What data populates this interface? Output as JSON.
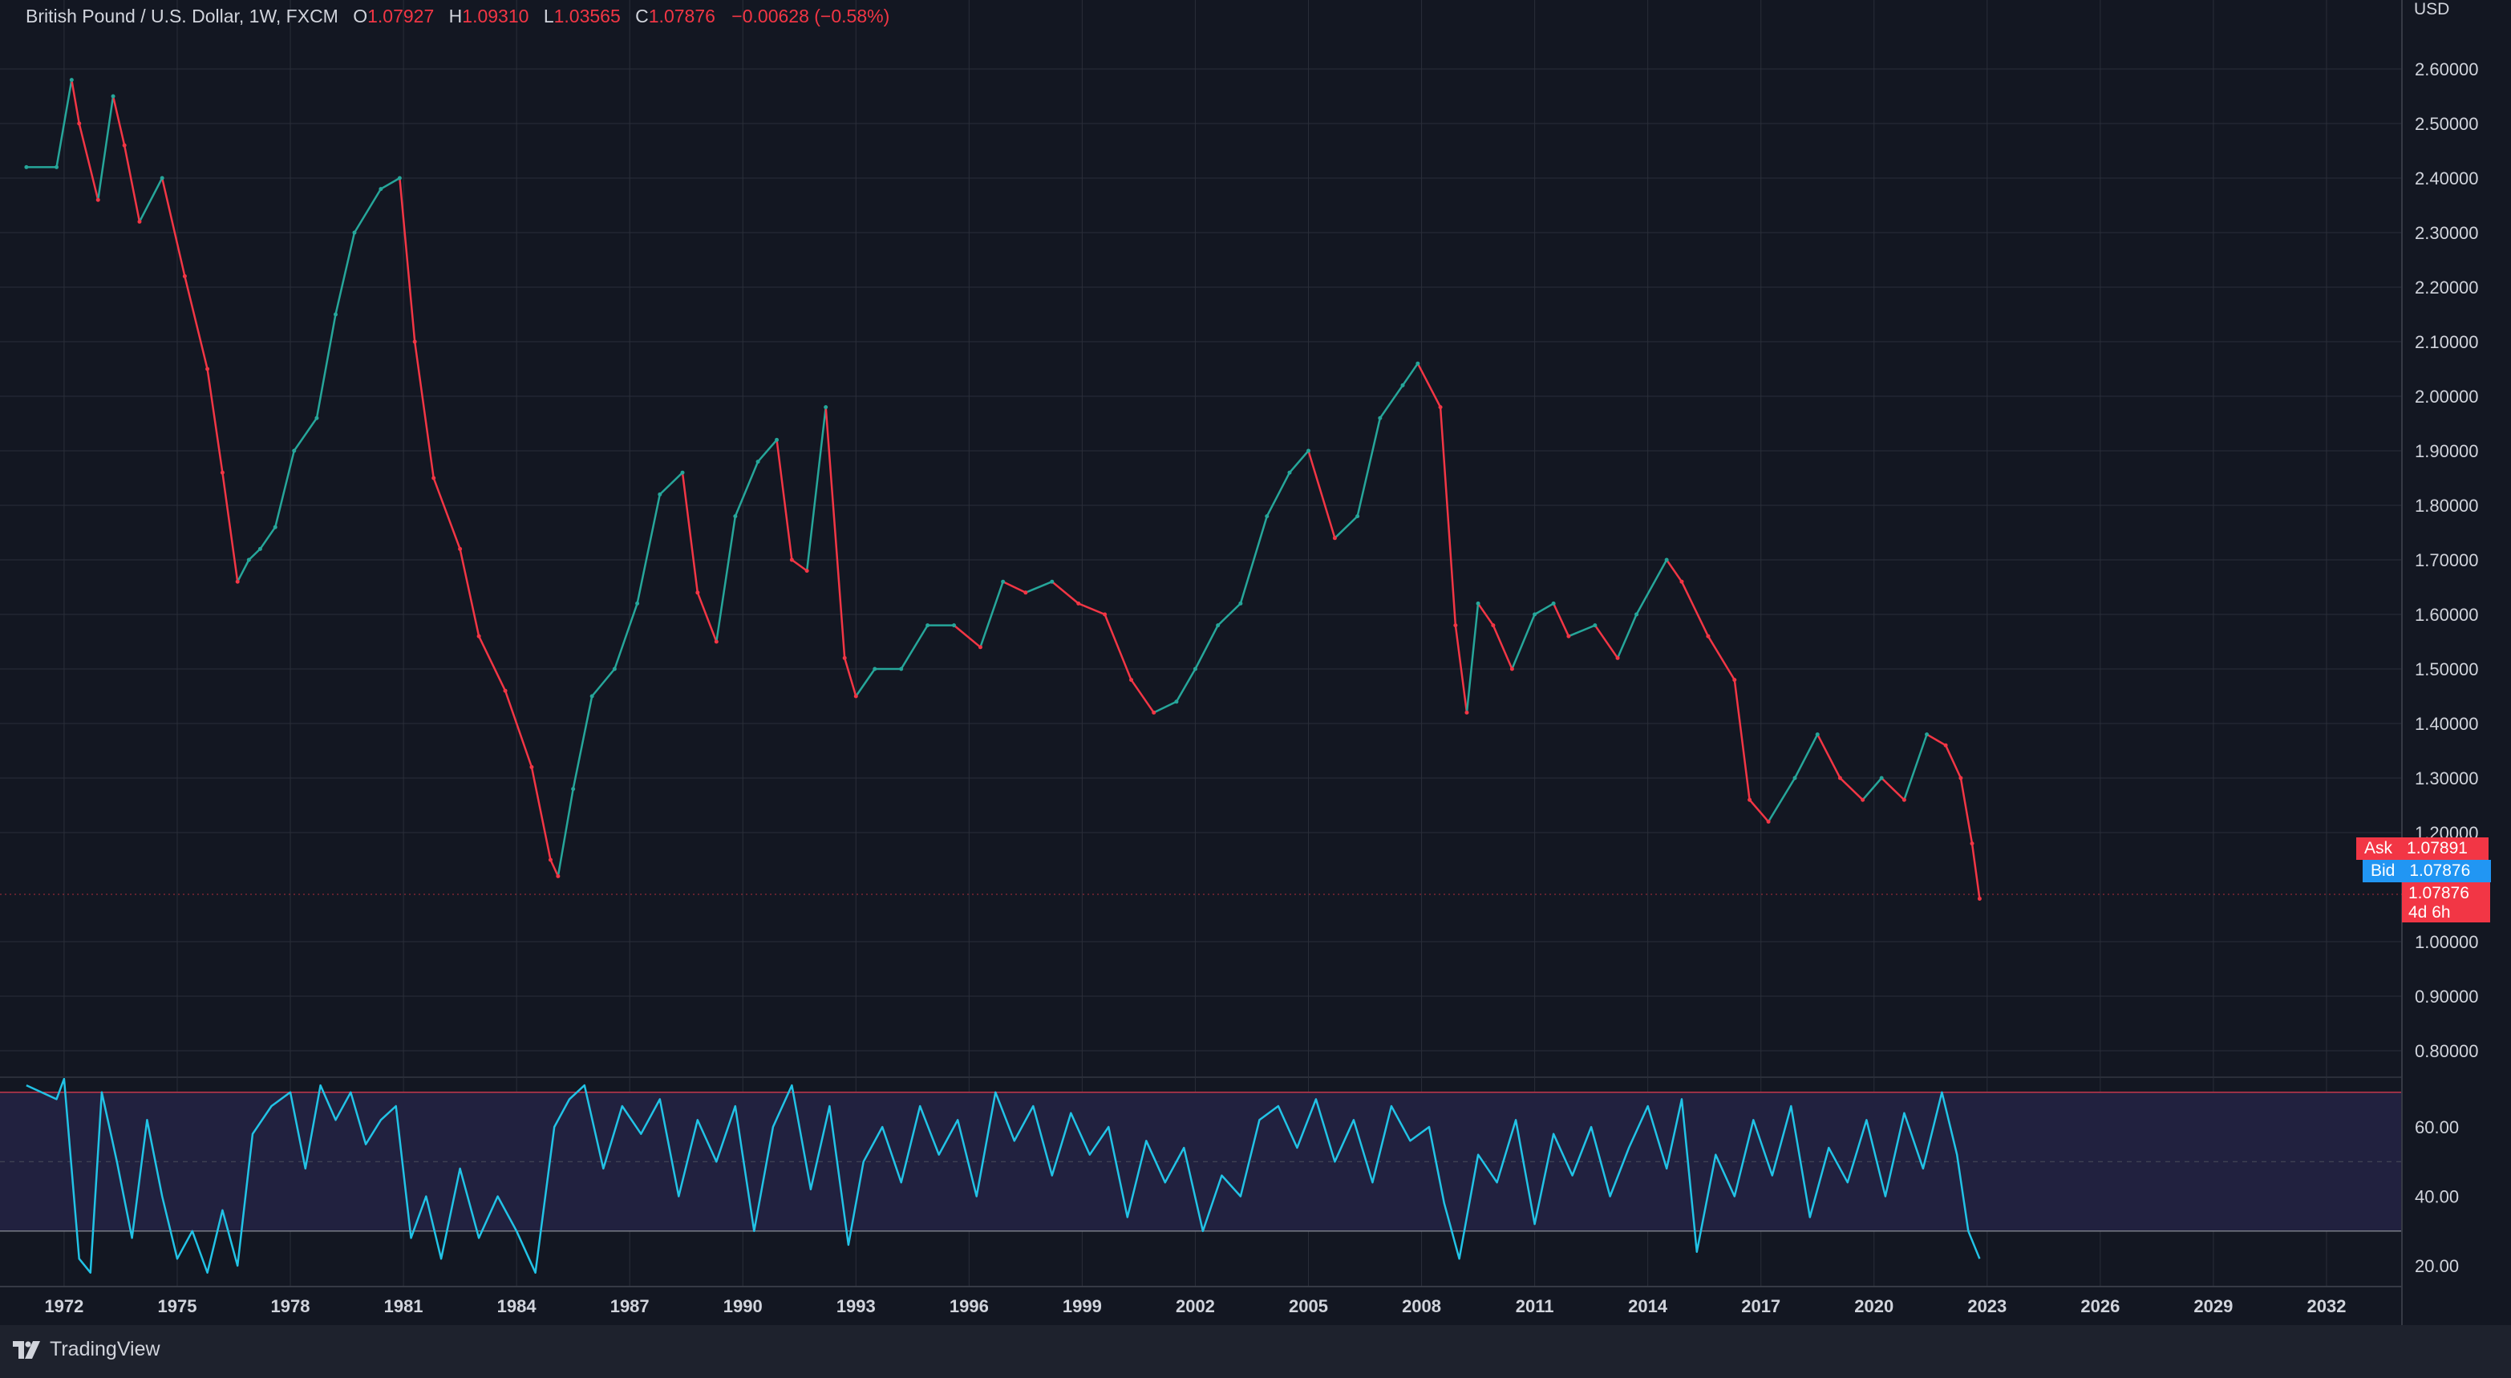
{
  "legend": {
    "symbol": "British Pound / U.S. Dollar, 1W, FXCM",
    "open_label": "O",
    "open": "1.07927",
    "high_label": "H",
    "high": "1.09310",
    "low_label": "L",
    "low": "1.03565",
    "close_label": "C",
    "close": "1.07876",
    "change": "−0.00628 (−0.58%)"
  },
  "currency": "USD",
  "ask": {
    "label": "Ask",
    "value": "1.07891"
  },
  "bid": {
    "label": "Bid",
    "value": "1.07876"
  },
  "last_price": {
    "value": "1.07876",
    "countdown": "4d 6h"
  },
  "brand": "TradingView",
  "colors": {
    "background": "#131722",
    "grid": "#2a2e39",
    "up": "#26a69a",
    "down": "#f23645",
    "rsi_line": "#22c3e6",
    "rsi_band": "#21213f",
    "rsi_bound": "#c2364a",
    "panel": "#1e222d"
  },
  "chart_data": [
    {
      "type": "line",
      "title": "British Pound / U.S. Dollar, 1W, FXCM",
      "xlabel": "",
      "ylabel": "",
      "x_ticks": [
        "1972",
        "1975",
        "1978",
        "1981",
        "1984",
        "1987",
        "1990",
        "1993",
        "1996",
        "1999",
        "2002",
        "2005",
        "2008",
        "2011",
        "2014",
        "2017",
        "2020",
        "2023",
        "2026",
        "2029",
        "2032"
      ],
      "x_range": [
        1970.3,
        2034.0
      ],
      "ylim": [
        0.75,
        2.7
      ],
      "y_ticks": [
        "2.60000",
        "2.50000",
        "2.40000",
        "2.30000",
        "2.20000",
        "2.10000",
        "2.00000",
        "1.90000",
        "1.80000",
        "1.70000",
        "1.60000",
        "1.50000",
        "1.40000",
        "1.30000",
        "1.20000",
        "1.00000",
        "0.90000",
        "0.80000"
      ],
      "grid": true,
      "series": [
        {
          "x": [
            1971.0,
            1971.8,
            1972.2,
            1972.4,
            1972.9,
            1973.3,
            1973.6,
            1974.0,
            1974.6,
            1975.2,
            1975.8,
            1976.2,
            1976.6,
            1976.9,
            1977.2,
            1977.6,
            1978.1,
            1978.7,
            1979.2,
            1979.7,
            1980.4,
            1980.9,
            1981.3,
            1981.8,
            1982.5,
            1983.0,
            1983.7,
            1984.4,
            1984.9,
            1985.1,
            1985.5,
            1986.0,
            1986.6,
            1987.2,
            1987.8,
            1988.4,
            1988.8,
            1989.3,
            1989.8,
            1990.4,
            1990.9,
            1991.3,
            1991.7,
            1992.2,
            1992.7,
            1993.0,
            1993.5,
            1994.2,
            1994.9,
            1995.6,
            1996.3,
            1996.9,
            1997.5,
            1998.2,
            1998.9,
            1999.6,
            2000.3,
            2000.9,
            2001.5,
            2002.0,
            2002.6,
            2003.2,
            2003.9,
            2004.5,
            2005.0,
            2005.7,
            2006.3,
            2006.9,
            2007.5,
            2007.9,
            2008.5,
            2008.9,
            2009.2,
            2009.5,
            2009.9,
            2010.4,
            2011.0,
            2011.5,
            2011.9,
            2012.6,
            2013.2,
            2013.7,
            2014.5,
            2014.9,
            2015.6,
            2016.3,
            2016.7,
            2017.2,
            2017.9,
            2018.5,
            2019.1,
            2019.7,
            2020.2,
            2020.8,
            2021.4,
            2021.9,
            2022.3,
            2022.6,
            2022.8
          ],
          "y": [
            2.42,
            2.42,
            2.58,
            2.5,
            2.36,
            2.55,
            2.46,
            2.32,
            2.4,
            2.22,
            2.05,
            1.86,
            1.66,
            1.7,
            1.72,
            1.76,
            1.9,
            1.96,
            2.15,
            2.3,
            2.38,
            2.4,
            2.1,
            1.85,
            1.72,
            1.56,
            1.46,
            1.32,
            1.15,
            1.12,
            1.28,
            1.45,
            1.5,
            1.62,
            1.82,
            1.86,
            1.64,
            1.55,
            1.78,
            1.88,
            1.92,
            1.7,
            1.68,
            1.98,
            1.52,
            1.45,
            1.5,
            1.5,
            1.58,
            1.58,
            1.54,
            1.66,
            1.64,
            1.66,
            1.62,
            1.6,
            1.48,
            1.42,
            1.44,
            1.5,
            1.58,
            1.62,
            1.78,
            1.86,
            1.9,
            1.74,
            1.78,
            1.96,
            2.02,
            2.06,
            1.98,
            1.58,
            1.42,
            1.62,
            1.58,
            1.5,
            1.6,
            1.62,
            1.56,
            1.58,
            1.52,
            1.6,
            1.7,
            1.66,
            1.56,
            1.48,
            1.26,
            1.22,
            1.3,
            1.38,
            1.3,
            1.26,
            1.3,
            1.26,
            1.38,
            1.36,
            1.3,
            1.18,
            1.07876
          ]
        }
      ]
    },
    {
      "type": "line",
      "title": "",
      "xlabel": "",
      "ylabel": "",
      "ylim": [
        16,
        75
      ],
      "y_ticks": [
        "60.00",
        "40.00",
        "20.00"
      ],
      "bands": {
        "upper": 70,
        "middle": 50,
        "lower": 30
      },
      "series": [
        {
          "x": [
            1971.0,
            1971.8,
            1972.0,
            1972.4,
            1972.7,
            1973.0,
            1973.4,
            1973.8,
            1974.2,
            1974.6,
            1975.0,
            1975.4,
            1975.8,
            1976.2,
            1976.6,
            1977.0,
            1977.5,
            1978.0,
            1978.4,
            1978.8,
            1979.2,
            1979.6,
            1980.0,
            1980.4,
            1980.8,
            1981.2,
            1981.6,
            1982.0,
            1982.5,
            1983.0,
            1983.5,
            1984.0,
            1984.5,
            1985.0,
            1985.4,
            1985.8,
            1986.3,
            1986.8,
            1987.3,
            1987.8,
            1988.3,
            1988.8,
            1989.3,
            1989.8,
            1990.3,
            1990.8,
            1991.3,
            1991.8,
            1992.3,
            1992.8,
            1993.2,
            1993.7,
            1994.2,
            1994.7,
            1995.2,
            1995.7,
            1996.2,
            1996.7,
            1997.2,
            1997.7,
            1998.2,
            1998.7,
            1999.2,
            1999.7,
            2000.2,
            2000.7,
            2001.2,
            2001.7,
            2002.2,
            2002.7,
            2003.2,
            2003.7,
            2004.2,
            2004.7,
            2005.2,
            2005.7,
            2006.2,
            2006.7,
            2007.2,
            2007.7,
            2008.2,
            2008.6,
            2009.0,
            2009.5,
            2010.0,
            2010.5,
            2011.0,
            2011.5,
            2012.0,
            2012.5,
            2013.0,
            2013.5,
            2014.0,
            2014.5,
            2014.9,
            2015.3,
            2015.8,
            2016.3,
            2016.8,
            2017.3,
            2017.8,
            2018.3,
            2018.8,
            2019.3,
            2019.8,
            2020.3,
            2020.8,
            2021.3,
            2021.8,
            2022.2,
            2022.5,
            2022.8
          ],
          "y": [
            72,
            68,
            74,
            22,
            18,
            70,
            50,
            28,
            62,
            40,
            22,
            30,
            18,
            36,
            20,
            58,
            66,
            70,
            48,
            72,
            62,
            70,
            55,
            62,
            66,
            28,
            40,
            22,
            48,
            28,
            40,
            30,
            18,
            60,
            68,
            72,
            48,
            66,
            58,
            68,
            40,
            62,
            50,
            66,
            30,
            60,
            72,
            42,
            66,
            26,
            50,
            60,
            44,
            66,
            52,
            62,
            40,
            70,
            56,
            66,
            46,
            64,
            52,
            60,
            34,
            56,
            44,
            54,
            30,
            46,
            40,
            62,
            66,
            54,
            68,
            50,
            62,
            44,
            66,
            56,
            60,
            38,
            22,
            52,
            44,
            62,
            32,
            58,
            46,
            60,
            40,
            54,
            66,
            48,
            68,
            24,
            52,
            40,
            62,
            46,
            66,
            34,
            54,
            44,
            62,
            40,
            64,
            48,
            70,
            52,
            30,
            22
          ]
        }
      ]
    }
  ]
}
